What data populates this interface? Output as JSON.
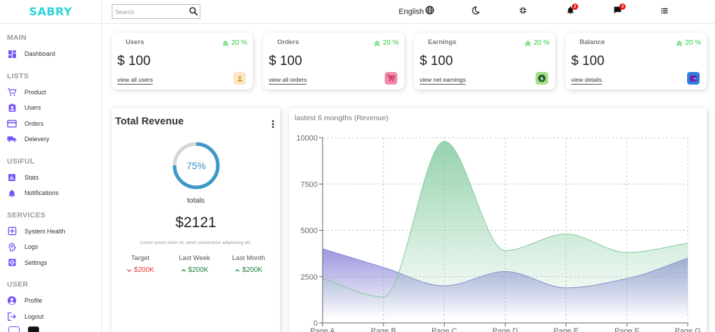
{
  "brand": {
    "logo": "SABRY"
  },
  "sidebar": {
    "sections": [
      {
        "title": "MAIN",
        "items": [
          {
            "label": "Dashboard",
            "icon": "dashboard-icon"
          }
        ]
      },
      {
        "title": "LISTS",
        "items": [
          {
            "label": "Product",
            "icon": "cart-icon"
          },
          {
            "label": "Users",
            "icon": "user-badge-icon"
          },
          {
            "label": "Orders",
            "icon": "credit-card-icon"
          },
          {
            "label": "Delevery",
            "icon": "truck-icon"
          }
        ]
      },
      {
        "title": "USIFUL",
        "items": [
          {
            "label": "Stats",
            "icon": "bar-chart-icon"
          },
          {
            "label": "Notifications",
            "icon": "bell-icon"
          }
        ]
      },
      {
        "title": "SERVICES",
        "items": [
          {
            "label": "System Health",
            "icon": "plus-box-icon"
          },
          {
            "label": "Logs",
            "icon": "psychology-icon"
          },
          {
            "label": "Settings",
            "icon": "gear-icon"
          }
        ]
      },
      {
        "title": "USER",
        "items": [
          {
            "label": "Profile",
            "icon": "account-circle-icon"
          },
          {
            "label": "Logout",
            "icon": "logout-icon"
          }
        ]
      }
    ]
  },
  "navbar": {
    "search_placeholder": "Search",
    "language": "English",
    "notifications_count": "2",
    "messages_count": "3"
  },
  "widgets": [
    {
      "title": "Users",
      "percent": "20 %",
      "value": "$ 100",
      "link": "view all users",
      "icon": "person-icon",
      "icon_bg": "#fbe8c6",
      "icon_color": "#e0a63a"
    },
    {
      "title": "Orders",
      "percent": "20 %",
      "value": "$ 100",
      "link": "view all orders",
      "icon": "shopping-cart-icon",
      "icon_bg": "#f08aa6",
      "icon_color": "#c2185b"
    },
    {
      "title": "Earnings",
      "percent": "20 %",
      "value": "$ 100",
      "link": "view net earnings",
      "icon": "dollar-icon",
      "icon_bg": "#a6dc8a",
      "icon_color": "#1b5e20"
    },
    {
      "title": "Balance",
      "percent": "20 %",
      "value": "$ 100",
      "link": "view details",
      "icon": "wallet-icon",
      "icon_bg": "#2f7fe0",
      "icon_color": "#7b1fa2"
    }
  ],
  "featured": {
    "title": "Total Revenue",
    "progress_percent": 75,
    "progress_label": "75%",
    "subtitle": "totals",
    "amount": "$2121",
    "description": "Lorem ipsum dolor sit, amet consectetur adipisicing elit.",
    "stats": [
      {
        "title": "Target",
        "value": "$200K",
        "trend": "down"
      },
      {
        "title": "Last Week",
        "value": "$200K",
        "trend": "up"
      },
      {
        "title": "Last Month",
        "value": "$200K",
        "trend": "up"
      }
    ]
  },
  "chart_data": {
    "type": "area",
    "title": "lastest 6 mongths (Revenue)",
    "categories": [
      "Page A",
      "Page B",
      "Page C",
      "Page D",
      "Page E",
      "Page F",
      "Page G"
    ],
    "series": [
      {
        "values": [
          4000,
          3000,
          2000,
          2780,
          1890,
          2390,
          3490
        ],
        "color": "#8884d8"
      },
      {
        "values": [
          2400,
          1398,
          9800,
          3908,
          4800,
          3800,
          4300
        ],
        "color": "#82ca9d"
      }
    ],
    "ylim": [
      0,
      10000
    ],
    "yticks": [
      "0",
      "2500",
      "5000",
      "7500",
      "10000"
    ],
    "grid": true
  }
}
